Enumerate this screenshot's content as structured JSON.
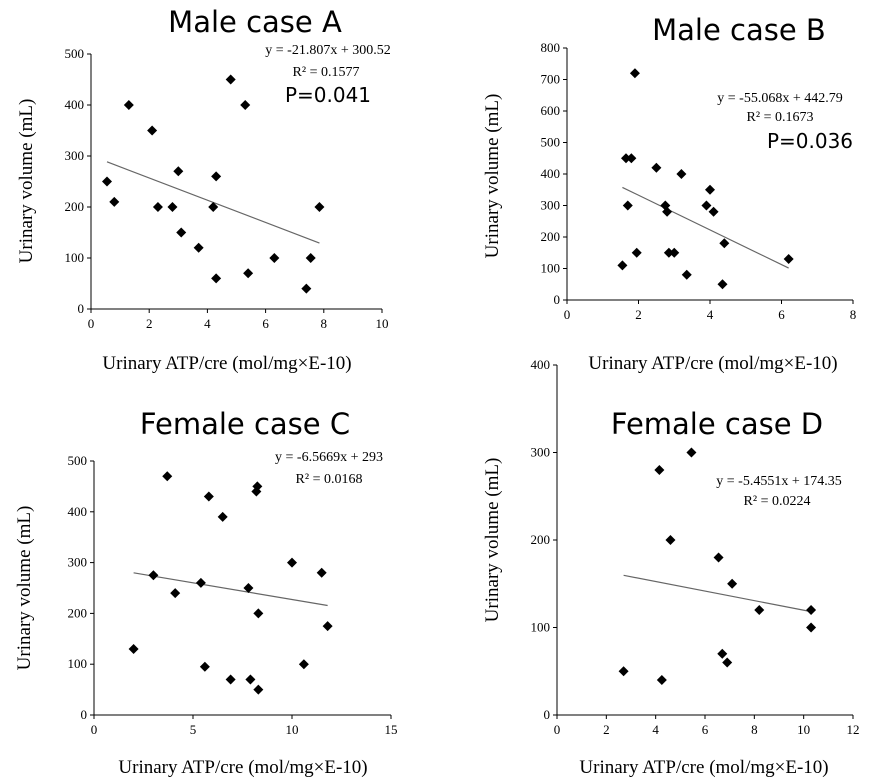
{
  "chart_data": [
    {
      "type": "scatter",
      "title": "Male case A",
      "xlabel": "Urinary ATP/cre (mol/mg×E-10)",
      "ylabel": "Urinary volume (mL)",
      "xlim": [
        0,
        10
      ],
      "ylim": [
        0,
        500
      ],
      "xticks": [
        "0",
        "2",
        "4",
        "6",
        "8",
        "10"
      ],
      "yticks": [
        "0",
        "100",
        "200",
        "300",
        "400",
        "500"
      ],
      "equation": "y = -21.807x + 300.52",
      "r2": "R² = 0.1577",
      "p_value": "P=0.041",
      "trend": {
        "slope": -21.807,
        "intercept": 300.52,
        "x_range": [
          0.55,
          7.85
        ]
      },
      "points": [
        {
          "x": 0.55,
          "y": 250
        },
        {
          "x": 0.8,
          "y": 210
        },
        {
          "x": 1.3,
          "y": 400
        },
        {
          "x": 2.1,
          "y": 350
        },
        {
          "x": 2.3,
          "y": 200
        },
        {
          "x": 2.8,
          "y": 200
        },
        {
          "x": 3.0,
          "y": 270
        },
        {
          "x": 3.1,
          "y": 150
        },
        {
          "x": 3.7,
          "y": 120
        },
        {
          "x": 4.2,
          "y": 200
        },
        {
          "x": 4.3,
          "y": 260
        },
        {
          "x": 4.3,
          "y": 60
        },
        {
          "x": 4.8,
          "y": 450
        },
        {
          "x": 5.3,
          "y": 400
        },
        {
          "x": 5.4,
          "y": 70
        },
        {
          "x": 6.3,
          "y": 100
        },
        {
          "x": 7.4,
          "y": 40
        },
        {
          "x": 7.55,
          "y": 100
        },
        {
          "x": 7.85,
          "y": 200
        }
      ]
    },
    {
      "type": "scatter",
      "title": "Male case B",
      "xlabel": "Urinary ATP/cre (mol/mg×E-10)",
      "ylabel": "Urinary volume (mL)",
      "xlim": [
        0,
        8
      ],
      "ylim": [
        0,
        800
      ],
      "xticks": [
        "0",
        "2",
        "4",
        "6",
        "8"
      ],
      "yticks": [
        "0",
        "100",
        "200",
        "300",
        "400",
        "500",
        "600",
        "700",
        "800"
      ],
      "equation": "y = -55.068x + 442.79",
      "r2": "R² = 0.1673",
      "p_value": "P=0.036",
      "trend": {
        "slope": -55.068,
        "intercept": 442.79,
        "x_range": [
          1.55,
          6.2
        ]
      },
      "points": [
        {
          "x": 1.55,
          "y": 110
        },
        {
          "x": 1.65,
          "y": 450
        },
        {
          "x": 1.7,
          "y": 300
        },
        {
          "x": 1.8,
          "y": 450
        },
        {
          "x": 1.9,
          "y": 720
        },
        {
          "x": 1.95,
          "y": 150
        },
        {
          "x": 2.5,
          "y": 420
        },
        {
          "x": 2.75,
          "y": 300
        },
        {
          "x": 2.8,
          "y": 280
        },
        {
          "x": 2.85,
          "y": 150
        },
        {
          "x": 3.0,
          "y": 150
        },
        {
          "x": 3.2,
          "y": 400
        },
        {
          "x": 3.35,
          "y": 80
        },
        {
          "x": 3.9,
          "y": 300
        },
        {
          "x": 4.0,
          "y": 350
        },
        {
          "x": 4.1,
          "y": 280
        },
        {
          "x": 4.35,
          "y": 50
        },
        {
          "x": 4.4,
          "y": 180
        },
        {
          "x": 6.2,
          "y": 130
        }
      ]
    },
    {
      "type": "scatter",
      "title": "Female case C",
      "xlabel": "Urinary ATP/cre (mol/mg×E-10)",
      "ylabel": "Urinary volume (mL)",
      "xlim": [
        0,
        15
      ],
      "ylim": [
        0,
        500
      ],
      "xticks": [
        "0",
        "5",
        "10",
        "15"
      ],
      "yticks": [
        "0",
        "100",
        "200",
        "300",
        "400",
        "500"
      ],
      "equation": "y = -6.5669x + 293",
      "r2": "R² = 0.0168",
      "p_value": "",
      "trend": {
        "slope": -6.5669,
        "intercept": 293,
        "x_range": [
          2.0,
          11.8
        ]
      },
      "points": [
        {
          "x": 2.0,
          "y": 130
        },
        {
          "x": 3.0,
          "y": 275
        },
        {
          "x": 3.7,
          "y": 470
        },
        {
          "x": 4.1,
          "y": 240
        },
        {
          "x": 5.4,
          "y": 260
        },
        {
          "x": 5.6,
          "y": 95
        },
        {
          "x": 5.8,
          "y": 430
        },
        {
          "x": 6.5,
          "y": 390
        },
        {
          "x": 6.9,
          "y": 70
        },
        {
          "x": 7.8,
          "y": 250
        },
        {
          "x": 7.9,
          "y": 70
        },
        {
          "x": 8.2,
          "y": 440
        },
        {
          "x": 8.25,
          "y": 450
        },
        {
          "x": 8.3,
          "y": 200
        },
        {
          "x": 8.3,
          "y": 50
        },
        {
          "x": 10.0,
          "y": 300
        },
        {
          "x": 10.6,
          "y": 100
        },
        {
          "x": 11.5,
          "y": 280
        },
        {
          "x": 11.8,
          "y": 175
        }
      ]
    },
    {
      "type": "scatter",
      "title": "Female case D",
      "xlabel": "Urinary ATP/cre (mol/mg×E-10)",
      "ylabel": "Urinary volume (mL)",
      "xlim": [
        0,
        12
      ],
      "ylim": [
        0,
        400
      ],
      "xticks": [
        "0",
        "2",
        "4",
        "6",
        "8",
        "10",
        "12"
      ],
      "yticks": [
        "0",
        "100",
        "200",
        "300",
        "400"
      ],
      "equation": "y = -5.4551x + 174.35",
      "r2": "R² = 0.0224",
      "p_value": "",
      "trend": {
        "slope": -5.4551,
        "intercept": 174.35,
        "x_range": [
          2.7,
          10.3
        ]
      },
      "points": [
        {
          "x": 2.7,
          "y": 50
        },
        {
          "x": 4.15,
          "y": 280
        },
        {
          "x": 4.25,
          "y": 40
        },
        {
          "x": 4.6,
          "y": 200
        },
        {
          "x": 5.45,
          "y": 300
        },
        {
          "x": 6.55,
          "y": 180
        },
        {
          "x": 6.7,
          "y": 70
        },
        {
          "x": 6.9,
          "y": 60
        },
        {
          "x": 7.1,
          "y": 150
        },
        {
          "x": 8.2,
          "y": 120
        },
        {
          "x": 10.3,
          "y": 120
        },
        {
          "x": 10.3,
          "y": 100
        }
      ]
    }
  ]
}
